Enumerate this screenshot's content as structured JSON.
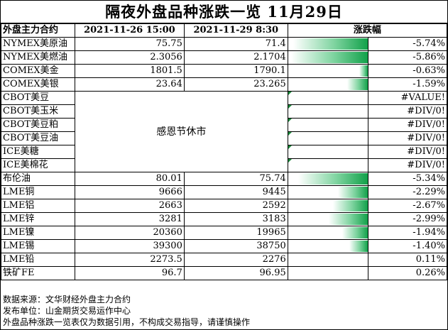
{
  "title": "隔夜外盘品种涨跌一览  11月29日",
  "headers": {
    "contract": "外盘主力合约",
    "date1": "2021-11-26 15:00",
    "date2": "2021-11-29 8:30",
    "change": "涨跌幅"
  },
  "holiday_note": "感恩节休市",
  "rows": [
    {
      "name": "NYMEX美原油",
      "v1": "75.75",
      "v2": "71.4",
      "pct": "-5.74%",
      "change": -5.74
    },
    {
      "name": "NYMEX美燃油",
      "v1": "2.3056",
      "v2": "2.1704",
      "pct": "-5.86%",
      "change": -5.86
    },
    {
      "name": "COMEX美金",
      "v1": "1801.5",
      "v2": "1790.1",
      "pct": "-0.63%",
      "change": -0.63
    },
    {
      "name": "COMEX美银",
      "v1": "23.64",
      "v2": "23.265",
      "pct": "-1.59%",
      "change": -1.59
    },
    {
      "name": "CBOT美豆",
      "v1": "",
      "v2": "",
      "pct": "#VALUE!",
      "change": null,
      "holiday": true
    },
    {
      "name": "CBOT美玉米",
      "v1": "",
      "v2": "",
      "pct": "#DIV/0!",
      "change": null,
      "holiday": true
    },
    {
      "name": "CBOT美豆粕",
      "v1": "",
      "v2": "",
      "pct": "#DIV/0!",
      "change": null,
      "holiday": true
    },
    {
      "name": "CBOT美豆油",
      "v1": "",
      "v2": "",
      "pct": "#DIV/0!",
      "change": null,
      "holiday": true
    },
    {
      "name": "ICE美糖",
      "v1": "",
      "v2": "",
      "pct": "#DIV/0!",
      "change": null,
      "holiday": true
    },
    {
      "name": "ICE美棉花",
      "v1": "",
      "v2": "",
      "pct": "#DIV/0!",
      "change": null,
      "holiday": true
    },
    {
      "name": "布伦油",
      "v1": "80.01",
      "v2": "75.74",
      "pct": "-5.34%",
      "change": -5.34
    },
    {
      "name": "LME铜",
      "v1": "9666",
      "v2": "9445",
      "pct": "-2.29%",
      "change": -2.29
    },
    {
      "name": "LME铝",
      "v1": "2663",
      "v2": "2592",
      "pct": "-2.67%",
      "change": -2.67
    },
    {
      "name": "LME锌",
      "v1": "3281",
      "v2": "3183",
      "pct": "-2.99%",
      "change": -2.99
    },
    {
      "name": "LME镍",
      "v1": "20360",
      "v2": "19965",
      "pct": "-1.94%",
      "change": -1.94
    },
    {
      "name": "LME锡",
      "v1": "39300",
      "v2": "38750",
      "pct": "-1.40%",
      "change": -1.4
    },
    {
      "name": "LME铅",
      "v1": "2273.5",
      "v2": "2276",
      "pct": "0.11%",
      "change": 0.11
    },
    {
      "name": "铁矿FE",
      "v1": "96.7",
      "v2": "96.95",
      "pct": "0.26%",
      "change": 0.26
    }
  ],
  "footer": {
    "source": "数据来源：文华财经外盘主力合约",
    "publisher": "发布单位：山金期货交易运作中心",
    "disclaimer": "外盘品种涨跌一览表仅为数据引用，不构成交易指导，请谨慎操作"
  },
  "colors": {
    "negative_bar": "#12a14a",
    "positive_bar": "#e83b3b"
  }
}
